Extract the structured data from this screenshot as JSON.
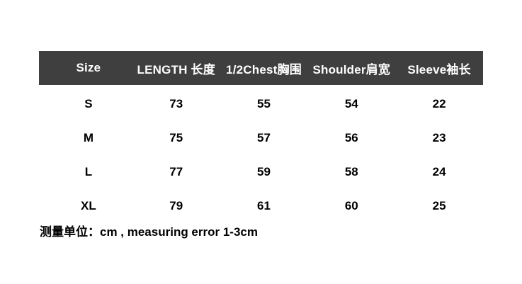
{
  "chart_data": {
    "type": "table",
    "columns": [
      "Size",
      "LENGTH 长度",
      "1/2Chest胸围",
      "Shoulder肩宽",
      "Sleeve袖长"
    ],
    "rows": [
      [
        "S",
        "73",
        "55",
        "54",
        "22"
      ],
      [
        "M",
        "75",
        "57",
        "56",
        "23"
      ],
      [
        "L",
        "77",
        "59",
        "58",
        "24"
      ],
      [
        "XL",
        "79",
        "61",
        "60",
        "25"
      ]
    ],
    "note": "测量单位：cm , measuring error 1-3cm",
    "unit": "cm",
    "layout_hints": {
      "header_row": true,
      "gridlines": false,
      "column_alignment": "center"
    }
  },
  "colors": {
    "header_background": "#3f3f3f",
    "header_text": "#ffffff",
    "body_text": "#000000",
    "page_background": "#ffffff"
  }
}
